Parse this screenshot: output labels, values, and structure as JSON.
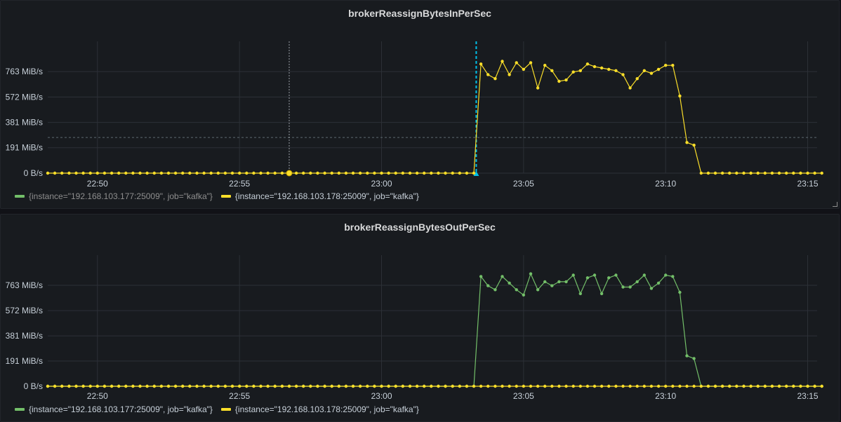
{
  "panels": [
    {
      "title": "brokerReassignBytesInPerSec",
      "chart_data": {
        "type": "line",
        "title": "brokerReassignBytesInPerSec",
        "xlabel": "",
        "ylabel": "",
        "x_ticks": [
          "22:50",
          "22:55",
          "23:00",
          "23:05",
          "23:10",
          "23:15"
        ],
        "y_ticks": [
          "0 B/s",
          "191 MiB/s",
          "381 MiB/s",
          "572 MiB/s",
          "763 MiB/s"
        ],
        "ylim_mib": [
          0,
          848
        ],
        "x_range": [
          "22:48:15",
          "23:15:20"
        ],
        "grid": true,
        "crosshair_time": "22:56:45",
        "threshold_line_mib": 268,
        "annotation_time": "23:03:20",
        "series": [
          {
            "name": "{instance=\"192.168.103.177:25009\", job=\"kafka\"}",
            "color": "#73bf69",
            "visible": false,
            "values_mib": []
          },
          {
            "name": "{instance=\"192.168.103.178:25009\", job=\"kafka\"}",
            "color": "#fade2a",
            "visible": true,
            "start": "22:48:15",
            "step_seconds": 15,
            "values_mib": [
              0,
              0,
              0,
              0,
              0,
              0,
              0,
              0,
              0,
              0,
              0,
              0,
              0,
              0,
              0,
              0,
              0,
              0,
              0,
              0,
              0,
              0,
              0,
              0,
              0,
              0,
              0,
              0,
              0,
              0,
              0,
              0,
              0,
              0,
              0,
              0,
              0,
              0,
              0,
              0,
              0,
              0,
              0,
              0,
              0,
              0,
              0,
              0,
              0,
              0,
              0,
              0,
              0,
              0,
              0,
              0,
              0,
              0,
              0,
              0,
              0,
              820,
              740,
              710,
              840,
              740,
              830,
              780,
              830,
              640,
              810,
              770,
              690,
              700,
              760,
              770,
              820,
              800,
              790,
              780,
              770,
              740,
              640,
              710,
              770,
              750,
              780,
              810,
              810,
              580,
              230,
              210,
              0,
              0,
              0,
              0,
              0,
              0,
              0,
              0,
              0,
              0,
              0,
              0,
              0,
              0,
              0,
              0,
              0,
              0
            ]
          }
        ]
      },
      "legend": [
        {
          "label": "{instance=\"192.168.103.177:25009\", job=\"kafka\"}",
          "color": "#73bf69",
          "active": false
        },
        {
          "label": "{instance=\"192.168.103.178:25009\", job=\"kafka\"}",
          "color": "#fade2a",
          "active": true
        }
      ]
    },
    {
      "title": "brokerReassignBytesOutPerSec",
      "chart_data": {
        "type": "line",
        "title": "brokerReassignBytesOutPerSec",
        "xlabel": "",
        "ylabel": "",
        "x_ticks": [
          "22:50",
          "22:55",
          "23:00",
          "23:05",
          "23:10",
          "23:15"
        ],
        "y_ticks": [
          "0 B/s",
          "191 MiB/s",
          "381 MiB/s",
          "572 MiB/s",
          "763 MiB/s"
        ],
        "ylim_mib": [
          0,
          848
        ],
        "x_range": [
          "22:48:15",
          "23:15:20"
        ],
        "grid": true,
        "series": [
          {
            "name": "{instance=\"192.168.103.177:25009\", job=\"kafka\"}",
            "color": "#73bf69",
            "visible": true,
            "start": "22:48:15",
            "step_seconds": 15,
            "values_mib": [
              0,
              0,
              0,
              0,
              0,
              0,
              0,
              0,
              0,
              0,
              0,
              0,
              0,
              0,
              0,
              0,
              0,
              0,
              0,
              0,
              0,
              0,
              0,
              0,
              0,
              0,
              0,
              0,
              0,
              0,
              0,
              0,
              0,
              0,
              0,
              0,
              0,
              0,
              0,
              0,
              0,
              0,
              0,
              0,
              0,
              0,
              0,
              0,
              0,
              0,
              0,
              0,
              0,
              0,
              0,
              0,
              0,
              0,
              0,
              0,
              0,
              830,
              760,
              730,
              830,
              780,
              730,
              690,
              850,
              730,
              790,
              760,
              790,
              790,
              840,
              700,
              820,
              840,
              700,
              820,
              840,
              750,
              750,
              790,
              840,
              740,
              780,
              840,
              830,
              710,
              230,
              210,
              0,
              0,
              0,
              0,
              0,
              0,
              0,
              0,
              0,
              0,
              0,
              0,
              0,
              0,
              0,
              0,
              0,
              0
            ]
          },
          {
            "name": "{instance=\"192.168.103.178:25009\", job=\"kafka\"}",
            "color": "#fade2a",
            "visible": true,
            "start": "22:48:15",
            "step_seconds": 15,
            "values_mib": [
              0,
              0,
              0,
              0,
              0,
              0,
              0,
              0,
              0,
              0,
              0,
              0,
              0,
              0,
              0,
              0,
              0,
              0,
              0,
              0,
              0,
              0,
              0,
              0,
              0,
              0,
              0,
              0,
              0,
              0,
              0,
              0,
              0,
              0,
              0,
              0,
              0,
              0,
              0,
              0,
              0,
              0,
              0,
              0,
              0,
              0,
              0,
              0,
              0,
              0,
              0,
              0,
              0,
              0,
              0,
              0,
              0,
              0,
              0,
              0,
              0,
              0,
              0,
              0,
              0,
              0,
              0,
              0,
              0,
              0,
              0,
              0,
              0,
              0,
              0,
              0,
              0,
              0,
              0,
              0,
              0,
              0,
              0,
              0,
              0,
              0,
              0,
              0,
              0,
              0,
              0,
              0,
              0,
              0,
              0,
              0,
              0,
              0,
              0,
              0,
              0,
              0,
              0,
              0,
              0,
              0,
              0,
              0,
              0,
              0
            ]
          }
        ]
      },
      "legend": [
        {
          "label": "{instance=\"192.168.103.177:25009\", job=\"kafka\"}",
          "color": "#73bf69",
          "active": true
        },
        {
          "label": "{instance=\"192.168.103.178:25009\", job=\"kafka\"}",
          "color": "#fade2a",
          "active": true
        }
      ]
    }
  ]
}
